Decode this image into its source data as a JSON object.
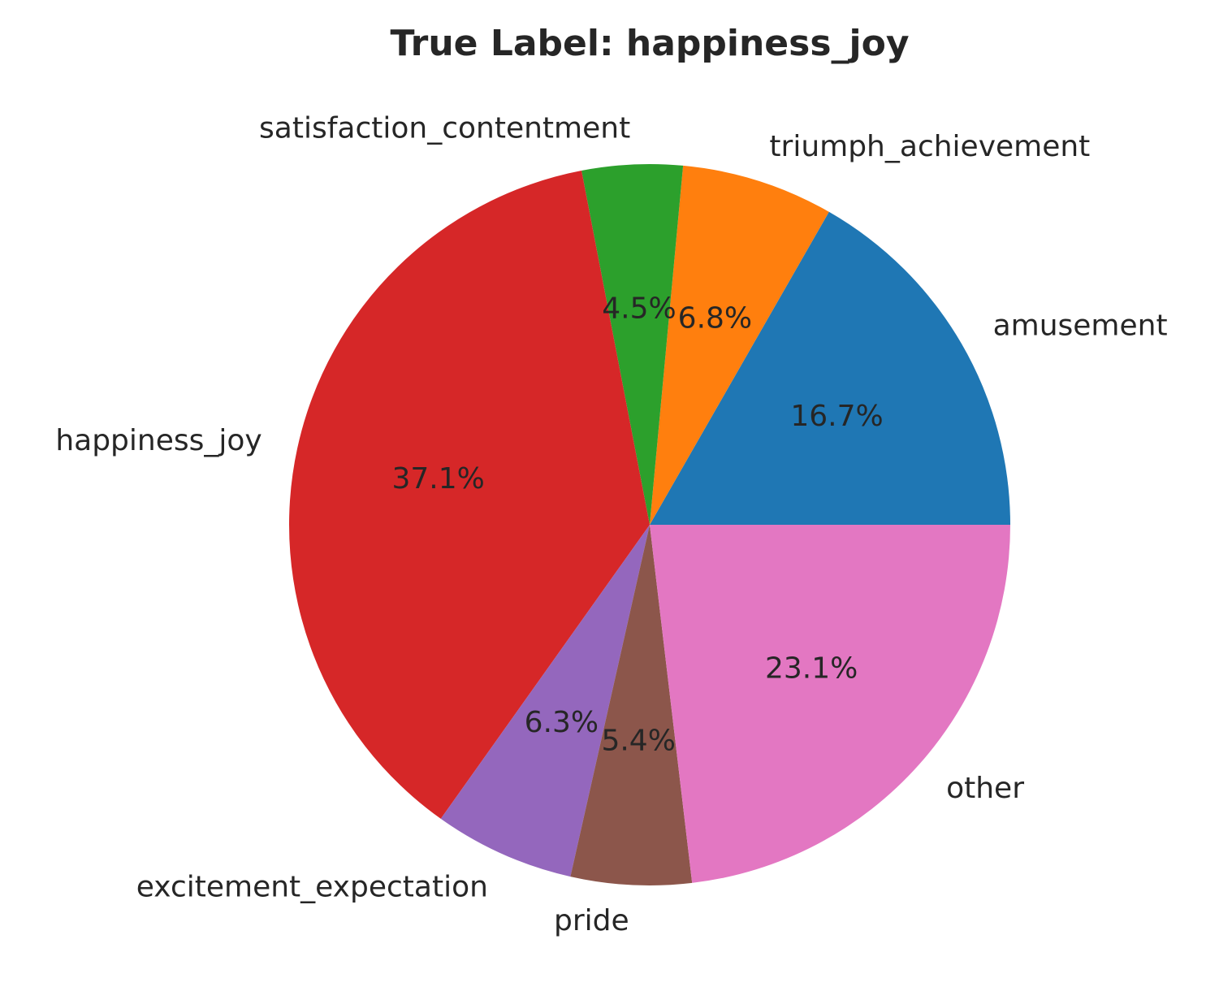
{
  "chart_data": {
    "type": "pie",
    "title": "True Label: happiness_joy",
    "categories": [
      "amusement",
      "triumph_achievement",
      "satisfaction_contentment",
      "happiness_joy",
      "excitement_expectation",
      "pride",
      "other"
    ],
    "values": [
      16.7,
      6.8,
      4.5,
      37.1,
      6.3,
      5.4,
      23.1
    ],
    "value_labels": [
      "16.7%",
      "6.8%",
      "4.5%",
      "37.1%",
      "6.3%",
      "5.4%",
      "23.1%"
    ],
    "colors": [
      "#1f77b4",
      "#ff7f0e",
      "#2ca02c",
      "#d62728",
      "#9467bd",
      "#8c564b",
      "#e377c2"
    ],
    "start_angle": 0,
    "direction": "counterclockwise",
    "legend": "none"
  }
}
